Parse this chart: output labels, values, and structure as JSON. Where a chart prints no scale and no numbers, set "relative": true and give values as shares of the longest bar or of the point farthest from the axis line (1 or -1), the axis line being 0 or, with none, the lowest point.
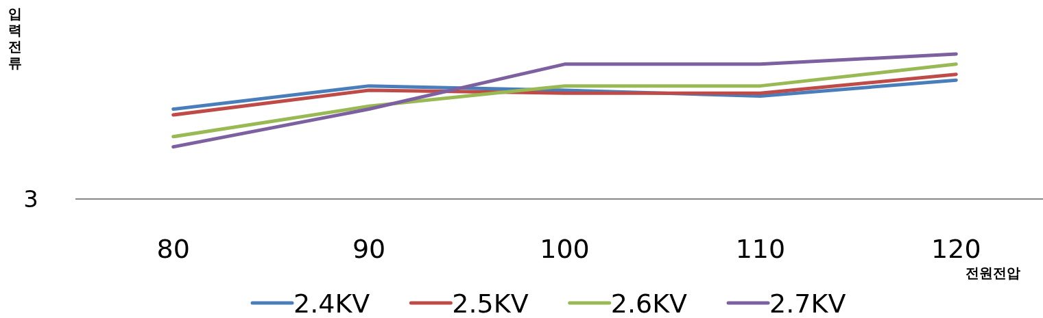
{
  "chart_data": {
    "type": "line",
    "relative": true,
    "xlabel": "전원전압",
    "ylabel": "입력전류",
    "annotations": [
      "3"
    ],
    "legend": "bottom",
    "marker": "none",
    "line_style": "solid",
    "categories": [
      "80",
      "90",
      "100",
      "110",
      "120"
    ],
    "series": [
      {
        "name": "2.4KV",
        "color": "#4a7ebb",
        "values": [
          0.62,
          0.78,
          0.75,
          0.71,
          0.82
        ]
      },
      {
        "name": "2.5KV",
        "color": "#be4b48",
        "values": [
          0.58,
          0.75,
          0.73,
          0.73,
          0.86
        ]
      },
      {
        "name": "2.6KV",
        "color": "#98b954",
        "values": [
          0.43,
          0.64,
          0.78,
          0.78,
          0.93
        ]
      },
      {
        "name": "2.7KV",
        "color": "#7d60a0",
        "values": [
          0.36,
          0.62,
          0.93,
          0.93,
          1
        ]
      }
    ]
  }
}
